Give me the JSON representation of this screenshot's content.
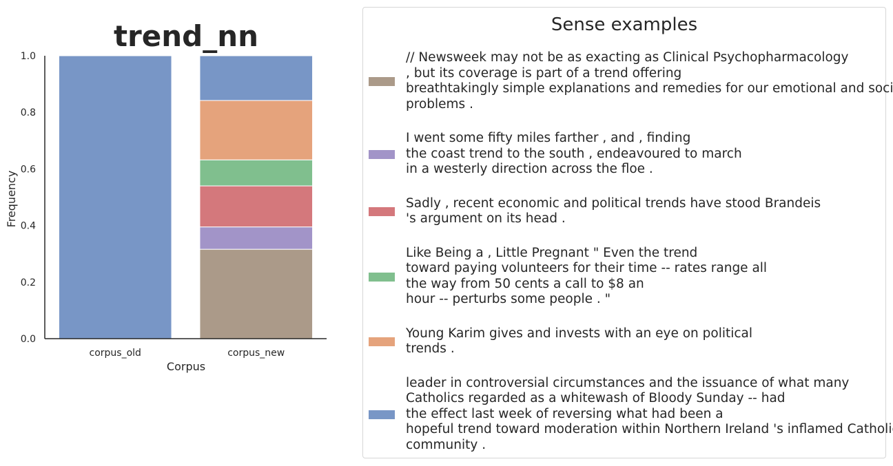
{
  "chart_data": {
    "type": "bar",
    "stacked": true,
    "title": "trend_nn",
    "xlabel": "Corpus",
    "ylabel": "Frequency",
    "ylim": [
      0,
      1.0
    ],
    "yticks": [
      "0.0",
      "0.2",
      "0.4",
      "0.6",
      "0.8",
      "1.0"
    ],
    "categories": [
      "corpus_old",
      "corpus_new"
    ],
    "series": [
      {
        "color": "#ab9a89",
        "values": [
          0.0,
          0.316
        ]
      },
      {
        "color": "#a294c8",
        "values": [
          0.0,
          0.079
        ]
      },
      {
        "color": "#d4787c",
        "values": [
          0.0,
          0.145
        ]
      },
      {
        "color": "#80bf8e",
        "values": [
          0.0,
          0.092
        ]
      },
      {
        "color": "#e5a37c",
        "values": [
          0.0,
          0.21
        ]
      },
      {
        "color": "#7896c6",
        "values": [
          1.0,
          0.158
        ]
      }
    ]
  },
  "legend": {
    "title": "Sense examples",
    "items": [
      {
        "color": "#ab9a89",
        "text": "// Newsweek may not be as exacting as Clinical Psychopharmacology\n, but its coverage is part of a trend offering\nbreathtakingly simple explanations and remedies for our emotional and social\nproblems ."
      },
      {
        "color": "#a294c8",
        "text": "I went some fifty miles farther , and , finding\nthe coast trend to the south , endeavoured to march\nin a westerly direction across the floe ."
      },
      {
        "color": "#d4787c",
        "text": "Sadly , recent economic and political trends have stood Brandeis\n's argument on its head ."
      },
      {
        "color": "#80bf8e",
        "text": "Like Being a , Little Pregnant \" Even the trend\ntoward paying volunteers for their time -- rates range all\nthe way from 50 cents a call to $8 an\nhour -- perturbs some people . \""
      },
      {
        "color": "#e5a37c",
        "text": "Young Karim gives and invests with an eye on political\ntrends ."
      },
      {
        "color": "#7896c6",
        "text": "leader in controversial circumstances and the issuance of what many\nCatholics regarded as a whitewash of Bloody Sunday -- had\nthe effect last week of reversing what had been a\nhopeful trend toward moderation within Northern Ireland 's inflamed Catholic\ncommunity ."
      }
    ]
  }
}
